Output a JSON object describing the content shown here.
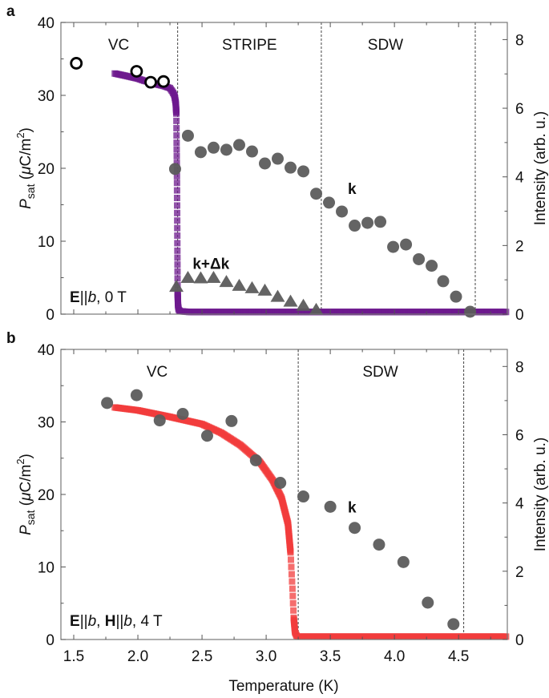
{
  "chart_data": [
    {
      "panel_label": "a",
      "type": "scatter",
      "xlabel": "",
      "ylabel_main": "P",
      "ylabel_sub": "sat",
      "ylabel_unit_open": " (",
      "ylabel_mu": "μ",
      "ylabel_unit": "C/m",
      "ylabel_sup": "2",
      "ylabel_close": ")",
      "y2label": "Intensity (arb. u.)",
      "xlim": [
        1.4,
        4.88
      ],
      "ylim": [
        0,
        40
      ],
      "y2lim": [
        0,
        8.5
      ],
      "xticks": [
        "1.5",
        "2.0",
        "2.5",
        "3.0",
        "3.5",
        "4.0",
        "4.5"
      ],
      "yticks": [
        "0",
        "10",
        "20",
        "30",
        "40"
      ],
      "y2ticks": [
        "0",
        "2",
        "4",
        "6",
        "8"
      ],
      "show_x_tick_labels": false,
      "phase_boundaries": [
        2.31,
        3.43,
        4.63
      ],
      "regions": [
        {
          "label": "VC",
          "x": 1.85
        },
        {
          "label": "STRIPE",
          "x": 2.87
        },
        {
          "label": "SDW",
          "x": 3.93
        }
      ],
      "condition": {
        "E": "E",
        "sep1": "||",
        "b": "b",
        "rest": ", 0 T"
      },
      "series_labels": [
        {
          "label": "k",
          "x": 3.67,
          "y": 16.5
        },
        {
          "label": "k+Δk",
          "x": 2.57,
          "y": 6.2
        }
      ],
      "series": [
        {
          "axis": "left",
          "marker": "square",
          "color": "#6e1a8e",
          "x": [
            1.82,
            1.9,
            2.0,
            2.05,
            2.1,
            2.15,
            2.2,
            2.25,
            2.27,
            2.285,
            2.295,
            2.3,
            2.302,
            2.305,
            2.308,
            2.31,
            2.313,
            2.318,
            2.33,
            2.4,
            2.6,
            3.0,
            3.5,
            4.0,
            4.5,
            4.88
          ],
          "y": [
            33.0,
            32.7,
            32.3,
            32.0,
            31.8,
            31.5,
            31.3,
            31.0,
            30.5,
            30.0,
            29.0,
            27.5,
            23.5,
            18.0,
            8.7,
            3.0,
            1.2,
            0.6,
            0.4,
            0.3,
            0.3,
            0.3,
            0.3,
            0.3,
            0.3,
            0.3
          ]
        },
        {
          "axis": "left",
          "marker": "open-circle",
          "color": "#000000",
          "x": [
            1.52,
            1.99,
            2.1,
            2.2
          ],
          "y": [
            34.4,
            33.3,
            31.8,
            31.9
          ]
        },
        {
          "axis": "right",
          "marker": "circle",
          "color": "#5c5c5c",
          "x": [
            2.29,
            2.39,
            2.49,
            2.59,
            2.69,
            2.79,
            2.89,
            2.99,
            3.09,
            3.19,
            3.29,
            3.39,
            3.49,
            3.59,
            3.69,
            3.79,
            3.89,
            3.99,
            4.09,
            4.19,
            4.29,
            4.38,
            4.48,
            4.59
          ],
          "y": [
            4.23,
            5.2,
            4.72,
            4.85,
            4.79,
            4.93,
            4.74,
            4.39,
            4.53,
            4.27,
            4.16,
            3.51,
            3.25,
            2.99,
            2.58,
            2.66,
            2.69,
            1.96,
            2.03,
            1.6,
            1.41,
            0.96,
            0.51,
            0.07
          ]
        },
        {
          "axis": "right",
          "marker": "triangle",
          "color": "#5c5c5c",
          "x": [
            2.3,
            2.39,
            2.49,
            2.59,
            2.69,
            2.79,
            2.89,
            2.99,
            3.09,
            3.19,
            3.29,
            3.39
          ],
          "y": [
            0.79,
            1.05,
            1.04,
            1.05,
            0.93,
            0.82,
            0.75,
            0.68,
            0.5,
            0.36,
            0.24,
            0.12
          ]
        }
      ]
    },
    {
      "panel_label": "b",
      "type": "scatter",
      "xlabel": "Temperature (K)",
      "ylabel_main": "P",
      "ylabel_sub": "sat",
      "ylabel_unit_open": " (",
      "ylabel_mu": "μ",
      "ylabel_unit": "C/m",
      "ylabel_sup": "2",
      "ylabel_close": ")",
      "y2label": "Intensity (arb. u.)",
      "xlim": [
        1.4,
        4.88
      ],
      "ylim": [
        0,
        40
      ],
      "y2lim": [
        0,
        8.5
      ],
      "xticks": [
        "1.5",
        "2.0",
        "2.5",
        "3.0",
        "3.5",
        "4.0",
        "4.5"
      ],
      "yticks": [
        "0",
        "10",
        "20",
        "30",
        "40"
      ],
      "y2ticks": [
        "0",
        "2",
        "4",
        "6",
        "8"
      ],
      "show_x_tick_labels": true,
      "phase_boundaries": [
        3.25,
        4.54
      ],
      "regions": [
        {
          "label": "VC",
          "x": 2.15
        },
        {
          "label": "SDW",
          "x": 3.89
        }
      ],
      "condition": {
        "E": "E",
        "sep1": "||",
        "b": "b",
        "mid": ", ",
        "H": "H",
        "sep2": "||",
        "b2": "b",
        "rest": ", 4 T"
      },
      "series_labels": [
        {
          "label": "k",
          "x": 3.67,
          "y": 17.5
        }
      ],
      "series": [
        {
          "axis": "left",
          "marker": "square",
          "color": "#f23c3c",
          "x": [
            1.82,
            2.0,
            2.25,
            2.5,
            2.65,
            2.8,
            2.95,
            3.05,
            3.12,
            3.17,
            3.19,
            3.205,
            3.215,
            3.225,
            3.24,
            3.5,
            4.0,
            4.5,
            4.88
          ],
          "y": [
            32.0,
            31.6,
            30.7,
            29.7,
            28.5,
            26.8,
            24.5,
            22.0,
            19.5,
            16.0,
            12.0,
            7.0,
            3.0,
            1.0,
            0.4,
            0.4,
            0.4,
            0.4,
            0.4
          ]
        },
        {
          "axis": "right",
          "marker": "circle",
          "color": "#5c5c5c",
          "x": [
            1.76,
            1.99,
            2.17,
            2.35,
            2.54,
            2.73,
            2.92,
            3.11,
            3.29,
            3.5,
            3.69,
            3.88,
            4.07,
            4.26,
            4.46
          ],
          "y": [
            6.93,
            7.16,
            6.42,
            6.61,
            5.97,
            6.4,
            5.25,
            4.59,
            4.19,
            3.89,
            3.27,
            2.78,
            2.27,
            1.08,
            0.45
          ]
        }
      ]
    }
  ]
}
